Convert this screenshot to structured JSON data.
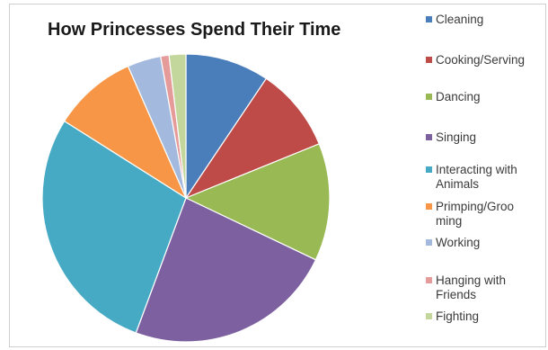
{
  "chart_data": {
    "type": "pie",
    "title": "How Princesses Spend Their Time",
    "legend_position": "right",
    "series": [
      {
        "name": "Cleaning",
        "value": 10,
        "color": "#4a7ebb"
      },
      {
        "name": "Cooking/Serving",
        "value": 10,
        "color": "#be4b48"
      },
      {
        "name": "Dancing",
        "value": 14,
        "color": "#98b954"
      },
      {
        "name": "Singing",
        "value": 25,
        "color": "#7d60a0"
      },
      {
        "name": "Interacting with Animals",
        "value": 30,
        "color": "#46aac4"
      },
      {
        "name": "Primping/Grooming",
        "value": 10,
        "color": "#f79646"
      },
      {
        "name": "Working",
        "value": 4,
        "color": "#a3b9dd"
      },
      {
        "name": "Hanging with Friends",
        "value": 1,
        "color": "#e59b99"
      },
      {
        "name": "Fighting",
        "value": 2,
        "color": "#c3d69b"
      }
    ],
    "legend_labels": [
      [
        "Cleaning"
      ],
      [
        "Cooking/Serving"
      ],
      [
        "Dancing"
      ],
      [
        "Singing"
      ],
      [
        "Interacting with",
        "Animals"
      ],
      [
        "Primping/Groo",
        "ming"
      ],
      [
        "Working"
      ],
      [
        "Hanging with",
        "Friends"
      ],
      [
        "Fighting"
      ]
    ]
  }
}
